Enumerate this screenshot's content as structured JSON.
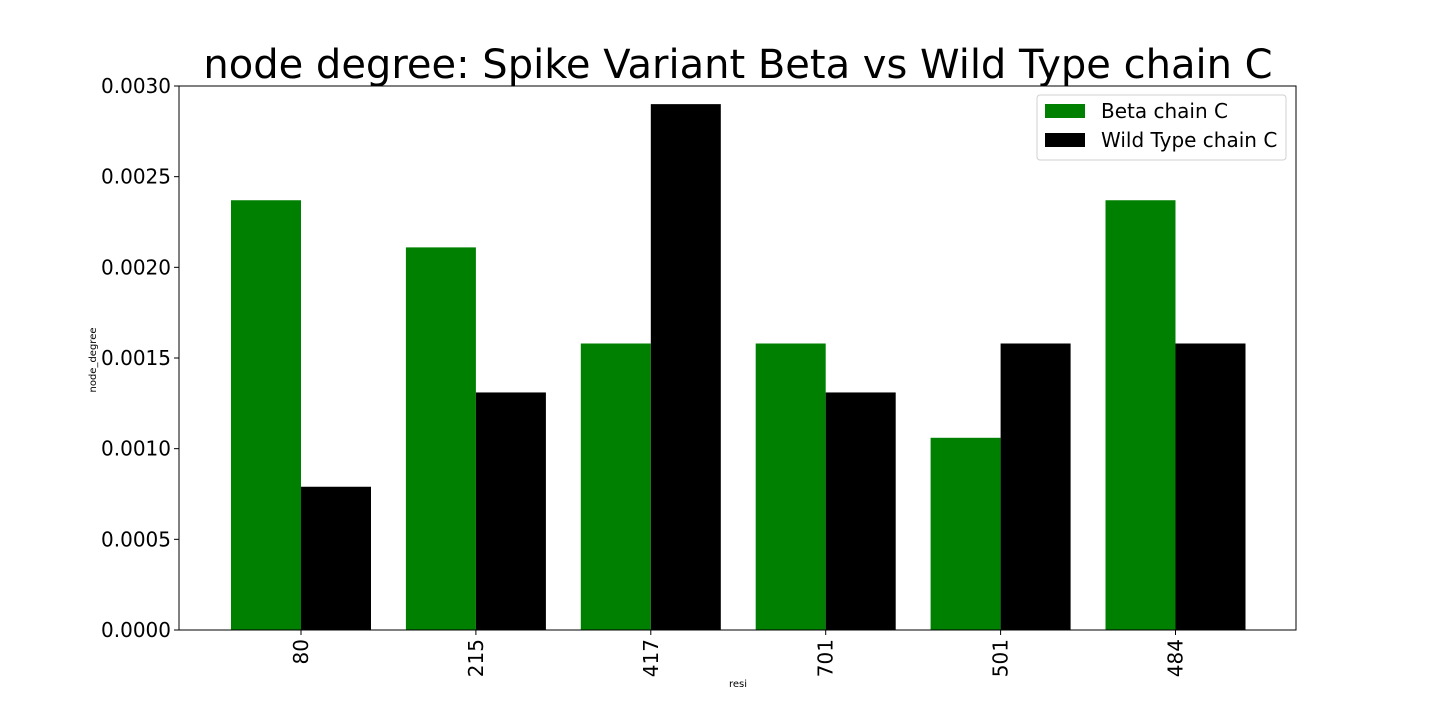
{
  "chart_data": {
    "type": "bar",
    "title": "node degree: Spike Variant Beta vs Wild Type chain C",
    "xlabel": "resi",
    "ylabel": "node_degree",
    "categories": [
      "80",
      "215",
      "417",
      "701",
      "501",
      "484"
    ],
    "series": [
      {
        "name": "Beta chain C",
        "color": "#008000",
        "values": [
          0.00237,
          0.00211,
          0.00158,
          0.00158,
          0.00106,
          0.00237
        ]
      },
      {
        "name": "Wild Type chain C",
        "color": "#000000",
        "values": [
          0.00079,
          0.00131,
          0.0029,
          0.00131,
          0.00158,
          0.00158
        ]
      }
    ],
    "ylim": [
      0,
      0.003
    ],
    "yticks": [
      "0.0000",
      "0.0005",
      "0.0010",
      "0.0015",
      "0.0020",
      "0.0025",
      "0.0030"
    ],
    "ytick_values": [
      0,
      0.0005,
      0.001,
      0.0015,
      0.002,
      0.0025,
      0.003
    ],
    "grid": false,
    "legend_position": "top-right"
  }
}
